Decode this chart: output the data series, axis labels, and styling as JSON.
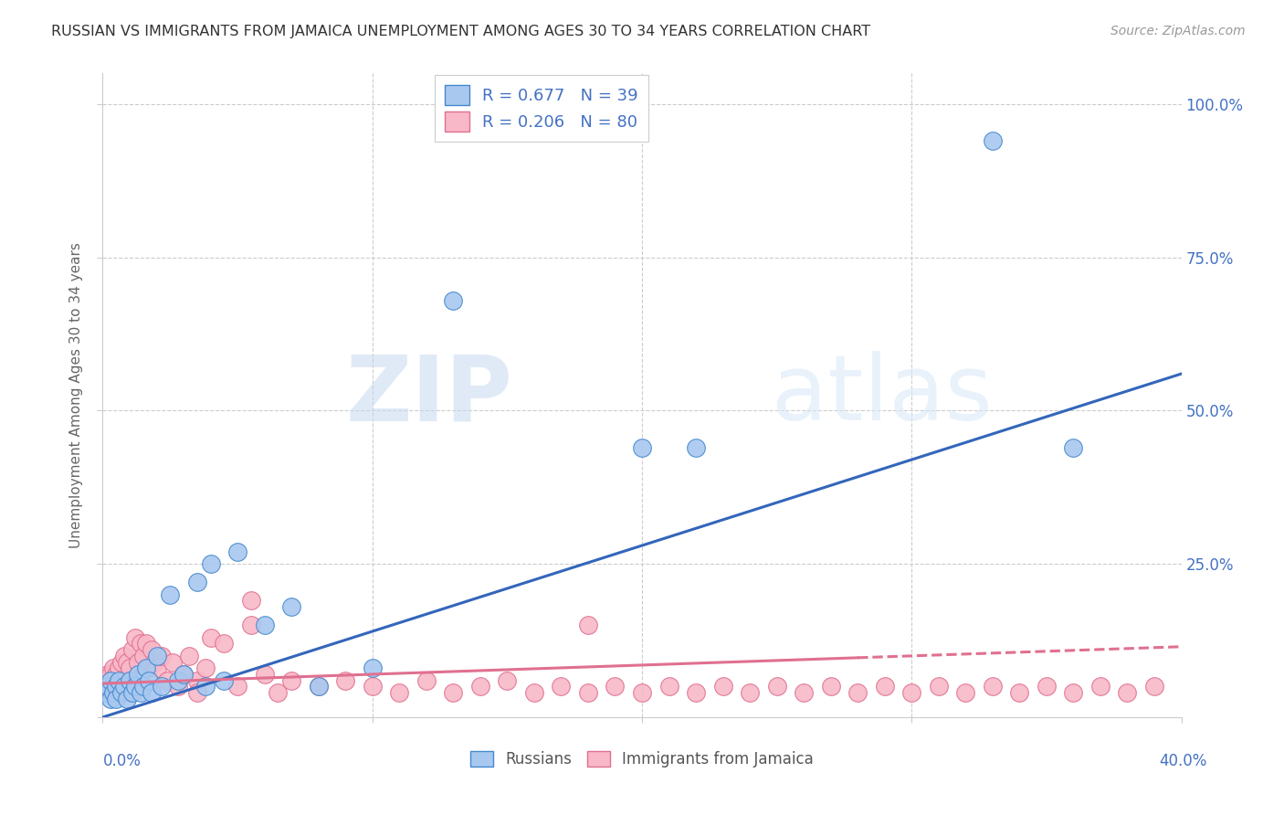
{
  "title": "RUSSIAN VS IMMIGRANTS FROM JAMAICA UNEMPLOYMENT AMONG AGES 30 TO 34 YEARS CORRELATION CHART",
  "source": "Source: ZipAtlas.com",
  "ylabel": "Unemployment Among Ages 30 to 34 years",
  "xlim": [
    0.0,
    0.4
  ],
  "ylim": [
    0.0,
    1.05
  ],
  "watermark_zip": "ZIP",
  "watermark_atlas": "atlas",
  "legend_r1": "R = 0.677",
  "legend_n1": "N = 39",
  "legend_r2": "R = 0.206",
  "legend_n2": "N = 80",
  "blue_face": "#a8c8f0",
  "blue_edge": "#4488cc",
  "pink_face": "#f8b8c8",
  "pink_edge": "#e07090",
  "blue_line": "#3366bb",
  "pink_line": "#e07090",
  "text_blue": "#4472c4",
  "grid_color": "#cccccc",
  "russian_x": [
    0.001,
    0.002,
    0.003,
    0.003,
    0.004,
    0.005,
    0.005,
    0.006,
    0.007,
    0.008,
    0.009,
    0.01,
    0.011,
    0.012,
    0.013,
    0.014,
    0.015,
    0.016,
    0.017,
    0.018,
    0.02,
    0.022,
    0.025,
    0.028,
    0.03,
    0.035,
    0.038,
    0.04,
    0.045,
    0.05,
    0.06,
    0.07,
    0.08,
    0.1,
    0.13,
    0.2,
    0.22,
    0.33,
    0.36
  ],
  "russian_y": [
    0.04,
    0.05,
    0.03,
    0.06,
    0.04,
    0.05,
    0.03,
    0.06,
    0.04,
    0.05,
    0.03,
    0.06,
    0.04,
    0.05,
    0.07,
    0.04,
    0.05,
    0.08,
    0.06,
    0.04,
    0.1,
    0.05,
    0.2,
    0.06,
    0.07,
    0.22,
    0.05,
    0.25,
    0.06,
    0.27,
    0.15,
    0.18,
    0.05,
    0.08,
    0.68,
    0.44,
    0.44,
    0.94,
    0.44
  ],
  "jamaica_x": [
    0.001,
    0.001,
    0.002,
    0.002,
    0.003,
    0.003,
    0.004,
    0.004,
    0.005,
    0.005,
    0.006,
    0.006,
    0.007,
    0.007,
    0.008,
    0.008,
    0.009,
    0.009,
    0.01,
    0.01,
    0.011,
    0.012,
    0.013,
    0.014,
    0.015,
    0.016,
    0.017,
    0.018,
    0.019,
    0.02,
    0.022,
    0.024,
    0.026,
    0.028,
    0.03,
    0.032,
    0.035,
    0.038,
    0.04,
    0.045,
    0.05,
    0.055,
    0.06,
    0.065,
    0.07,
    0.08,
    0.09,
    0.1,
    0.11,
    0.12,
    0.13,
    0.14,
    0.15,
    0.16,
    0.17,
    0.18,
    0.19,
    0.2,
    0.21,
    0.22,
    0.23,
    0.24,
    0.25,
    0.26,
    0.27,
    0.28,
    0.29,
    0.3,
    0.31,
    0.32,
    0.33,
    0.34,
    0.35,
    0.36,
    0.37,
    0.38,
    0.39,
    0.035,
    0.055,
    0.18
  ],
  "jamaica_y": [
    0.04,
    0.06,
    0.04,
    0.07,
    0.05,
    0.07,
    0.04,
    0.08,
    0.05,
    0.07,
    0.04,
    0.08,
    0.05,
    0.09,
    0.06,
    0.1,
    0.05,
    0.09,
    0.04,
    0.08,
    0.11,
    0.13,
    0.09,
    0.12,
    0.1,
    0.12,
    0.08,
    0.11,
    0.09,
    0.08,
    0.1,
    0.06,
    0.09,
    0.05,
    0.07,
    0.1,
    0.06,
    0.08,
    0.13,
    0.12,
    0.05,
    0.15,
    0.07,
    0.04,
    0.06,
    0.05,
    0.06,
    0.05,
    0.04,
    0.06,
    0.04,
    0.05,
    0.06,
    0.04,
    0.05,
    0.04,
    0.05,
    0.04,
    0.05,
    0.04,
    0.05,
    0.04,
    0.05,
    0.04,
    0.05,
    0.04,
    0.05,
    0.04,
    0.05,
    0.04,
    0.05,
    0.04,
    0.05,
    0.04,
    0.05,
    0.04,
    0.05,
    0.04,
    0.19,
    0.15
  ]
}
